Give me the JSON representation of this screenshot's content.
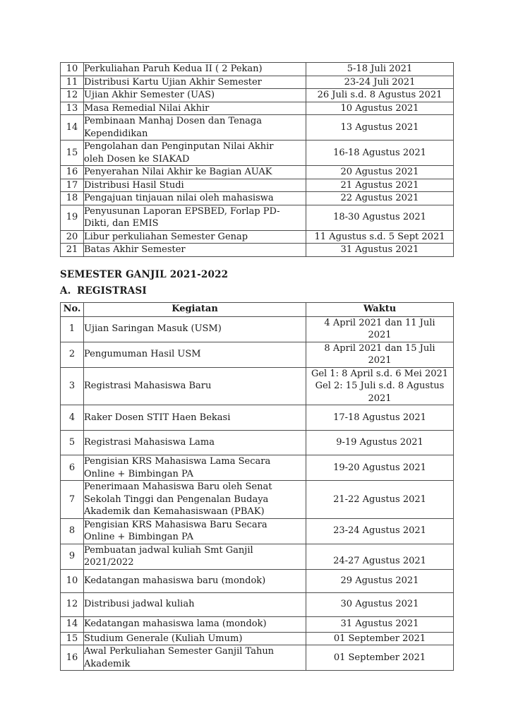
{
  "document": {
    "section_heading": "SEMESTER GANJIL 2021-2022",
    "subsection_label": "A.",
    "subsection_title": "REGISTRASI"
  },
  "table_continued": {
    "rows": [
      {
        "no": "10",
        "kegiatan": "Perkuliahan Paruh Kedua II ( 2 Pekan)",
        "waktu": "5-18 Juli 2021"
      },
      {
        "no": "11",
        "kegiatan": "Distribusi Kartu Ujian Akhir Semester",
        "waktu": "23-24 Juli 2021"
      },
      {
        "no": "12",
        "kegiatan": "Ujian Akhir Semester (UAS)",
        "waktu": "26 Juli s.d. 8 Agustus 2021"
      },
      {
        "no": "13",
        "kegiatan": "Masa Remedial Nilai Akhir",
        "waktu": "10 Agustus 2021"
      },
      {
        "no": "14",
        "kegiatan": "Pembinaan Manhaj Dosen dan Tenaga\nKependidikan",
        "waktu": "13 Agustus 2021"
      },
      {
        "no": "15",
        "kegiatan": "Pengolahan dan Penginputan Nilai Akhir\noleh Dosen ke SIAKAD",
        "waktu": "16-18 Agustus 2021"
      },
      {
        "no": "16",
        "kegiatan": "Penyerahan Nilai Akhir ke Bagian AUAK",
        "waktu": "20 Agustus 2021"
      },
      {
        "no": "17",
        "kegiatan": "Distribusi Hasil Studi",
        "waktu": "21 Agustus 2021"
      },
      {
        "no": "18",
        "kegiatan": "Pengajuan tinjauan nilai oleh mahasiswa",
        "waktu": "22 Agustus 2021"
      },
      {
        "no": "19",
        "kegiatan": "Penyusunan Laporan EPSBED, Forlap PD-\nDikti, dan EMIS",
        "waktu": "18-30 Agustus 2021"
      },
      {
        "no": "20",
        "kegiatan": "Libur perkuliahan Semester Genap",
        "waktu": "11 Agustus s.d. 5 Sept 2021"
      },
      {
        "no": "21",
        "kegiatan": "Batas Akhir Semester",
        "waktu": "31 Agustus 2021"
      }
    ]
  },
  "registration_table": {
    "headers": {
      "no": "No.",
      "kegiatan": "Kegiatan",
      "waktu": "Waktu"
    },
    "rows": [
      {
        "no": "1",
        "kegiatan": "Ujian Saringan Masuk (USM)",
        "waktu": "4 April 2021 dan 11 Juli\n2021"
      },
      {
        "no": "2",
        "kegiatan": "Pengumuman Hasil USM",
        "waktu": "8 April 2021 dan 15 Juli\n2021"
      },
      {
        "no": "3",
        "kegiatan": "Registrasi Mahasiswa Baru",
        "waktu": "Gel 1: 8 April s.d. 6 Mei 2021\nGel 2: 15 Juli s.d. 8 Agustus\n2021"
      },
      {
        "no": "4",
        "kegiatan": "Raker Dosen STIT Haen Bekasi",
        "waktu": "17-18 Agustus 2021"
      },
      {
        "no": "5",
        "kegiatan": "Registrasi Mahasiswa Lama",
        "waktu": "9-19 Agustus 2021"
      },
      {
        "no": "6",
        "kegiatan": "Pengisian KRS Mahasiswa Lama Secara\nOnline + Bimbingan PA",
        "waktu": "19-20 Agustus 2021"
      },
      {
        "no": "7",
        "kegiatan": "Penerimaan Mahasiswa Baru oleh Senat\nSekolah Tinggi dan Pengenalan Budaya\nAkademik dan Kemahasiswaan (PBAK)",
        "waktu": "21-22 Agustus 2021"
      },
      {
        "no": "8",
        "kegiatan": "Pengisian KRS Mahasiswa Baru Secara\nOnline + Bimbingan PA",
        "waktu": "23-24 Agustus 2021"
      },
      {
        "no": "9",
        "kegiatan": "Pembuatan jadwal kuliah Smt Ganjil\n2021/2022",
        "waktu": "24-27 Agustus 2021"
      },
      {
        "no": "10",
        "kegiatan": "Kedatangan mahasiswa baru (mondok)",
        "waktu": "29 Agustus 2021"
      },
      {
        "no": "12",
        "kegiatan": "Distribusi jadwal kuliah",
        "waktu": "30 Agustus 2021"
      },
      {
        "no": "14",
        "kegiatan": "Kedatangan mahasiswa lama (mondok)",
        "waktu": "31 Agustus 2021"
      },
      {
        "no": "15",
        "kegiatan": "Studium Generale (Kuliah Umum)",
        "waktu": "01 September 2021"
      },
      {
        "no": "16",
        "kegiatan": "Awal Perkuliahan Semester Ganjil Tahun\nAkademik",
        "waktu": "01 September 2021"
      }
    ]
  }
}
